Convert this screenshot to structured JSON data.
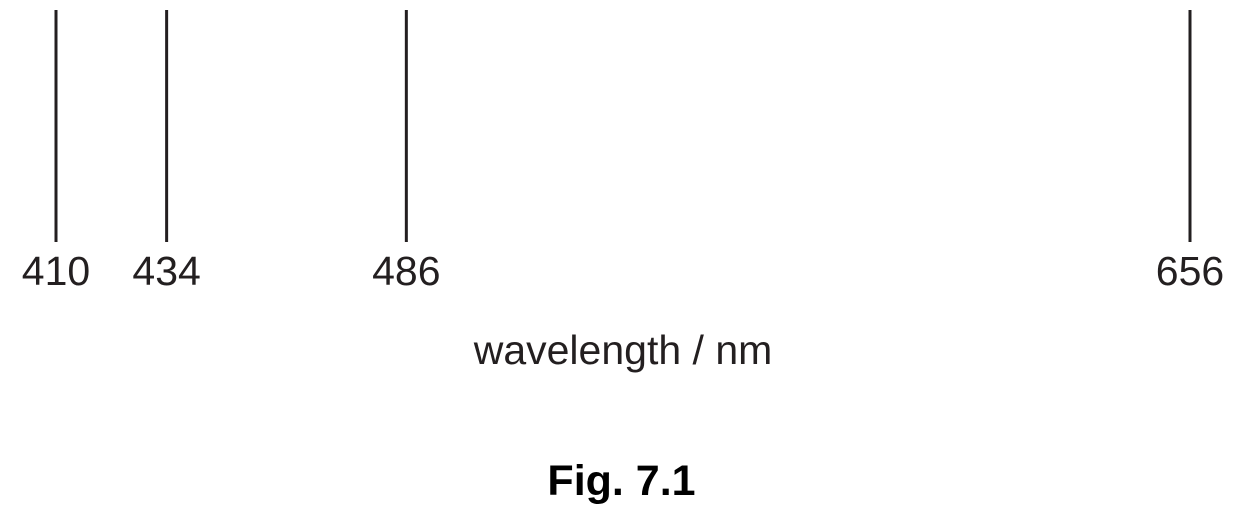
{
  "chart_data": {
    "type": "scatter",
    "description_type": "emission-line-spectrum",
    "x": [
      410,
      434,
      486,
      656
    ],
    "tick_labels": [
      "410",
      "434",
      "486",
      "656"
    ],
    "xlabel": "wavelength / nm",
    "xlim": [
      410,
      656
    ]
  },
  "caption": "Fig. 7.1",
  "line_color": "#231f20"
}
